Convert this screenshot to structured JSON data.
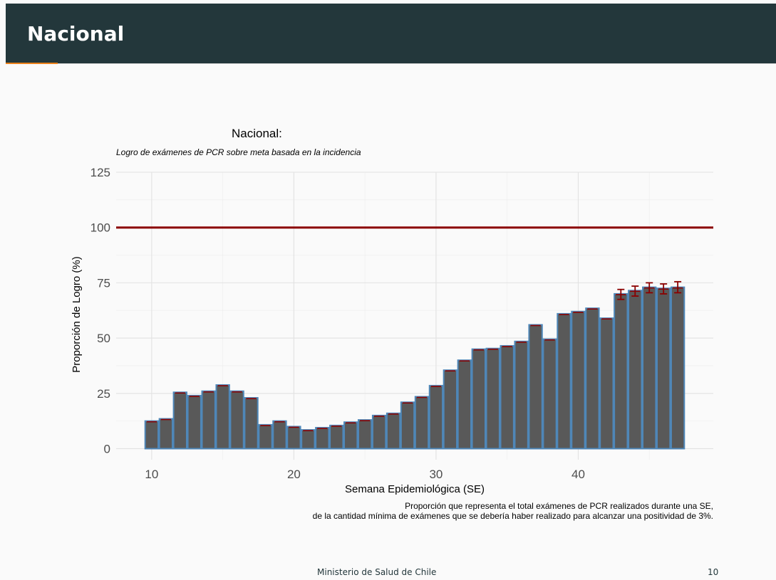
{
  "header": {
    "title": "Nacional"
  },
  "footer": {
    "org": "Ministerio de Salud de Chile",
    "page": "10"
  },
  "colors": {
    "bar_fill": "#595959",
    "bar_stroke": "#4f87b8",
    "target_line": "#8b0000",
    "error_bar": "#8b0000",
    "header_bg": "#23373b",
    "accent": "#eb811b"
  },
  "chart_data": {
    "type": "bar",
    "title": "Nacional:",
    "subtitle": "Logro de exámenes de PCR sobre meta basada en la incidencia",
    "xlabel": "Semana Epidemiológica (SE)",
    "ylabel": "Proporción de Logro (%)",
    "caption_line1": "Proporción que representa el total exámenes de PCR realizados durante una SE,",
    "caption_line2": "de la cantidad mínima de exámenes que se debería haber realizado para alcanzar una positividad de 3%.",
    "xlim": [
      7.5,
      49.5
    ],
    "ylim": [
      -5,
      125
    ],
    "xticks": [
      10,
      20,
      30,
      40
    ],
    "yticks": [
      0,
      25,
      50,
      75,
      100,
      125
    ],
    "target": 100,
    "grid": true,
    "x": [
      10,
      11,
      12,
      13,
      14,
      15,
      16,
      17,
      18,
      19,
      20,
      21,
      22,
      23,
      24,
      25,
      26,
      27,
      28,
      29,
      30,
      31,
      32,
      33,
      34,
      35,
      36,
      37,
      38,
      39,
      40,
      41,
      42,
      43,
      44,
      45,
      46,
      47
    ],
    "values": [
      12.5,
      13.5,
      25.5,
      24,
      26,
      28.8,
      26,
      23,
      10.8,
      12.5,
      10,
      8.5,
      9.5,
      10.5,
      12,
      13,
      15,
      16,
      21,
      23.5,
      28.5,
      35.5,
      40,
      45,
      45.3,
      46.5,
      48.5,
      56,
      49.5,
      61,
      62,
      63.5,
      59,
      70,
      71.5,
      73,
      72.5,
      73
    ],
    "error_bars": [
      {
        "x": 43,
        "low": 67.5,
        "high": 72
      },
      {
        "x": 44,
        "low": 69,
        "high": 73.5
      },
      {
        "x": 45,
        "low": 70.5,
        "high": 75
      },
      {
        "x": 46,
        "low": 70,
        "high": 74.5
      },
      {
        "x": 47,
        "low": 70.5,
        "high": 75.5
      }
    ]
  }
}
